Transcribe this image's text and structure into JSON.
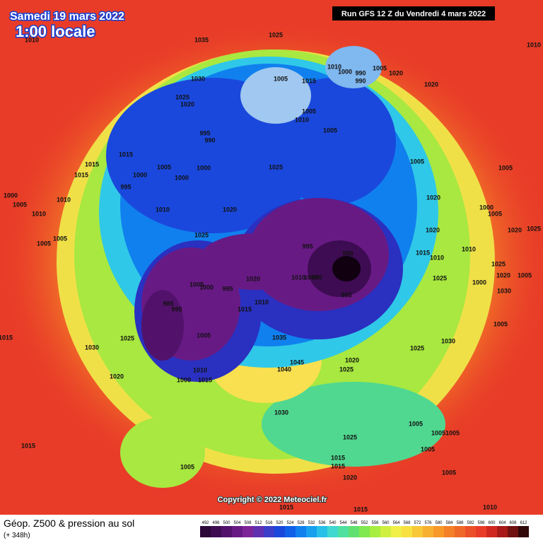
{
  "header": {
    "date": "Samedi 19 mars 2022",
    "time": "1:00 locale",
    "run": "Run GFS 12 Z du Vendredi 4 mars 2022"
  },
  "copyright": "Copyright © 2022 Meteociel.fr",
  "legend": {
    "title": "Géop. Z500 & pression au sol",
    "subtitle": "(+ 348h)",
    "ticks": [
      492,
      496,
      500,
      504,
      508,
      512,
      516,
      520,
      524,
      528,
      532,
      536,
      540,
      544,
      548,
      552,
      556,
      560,
      564,
      568,
      572,
      576,
      580,
      584,
      588,
      592,
      596,
      600,
      604,
      608,
      612
    ],
    "colors": [
      "#2b0838",
      "#3d0c52",
      "#52126b",
      "#681a84",
      "#7e2499",
      "#6030b0",
      "#3a3ec8",
      "#1a48dc",
      "#1060e8",
      "#1080ee",
      "#18a0ee",
      "#28c0e8",
      "#40d8d0",
      "#50e0a0",
      "#60e070",
      "#80e850",
      "#a8ee40",
      "#d0f040",
      "#f0f048",
      "#f8e040",
      "#f8c838",
      "#f8b030",
      "#f89828",
      "#f48028",
      "#f06828",
      "#ec5028",
      "#e83c28",
      "#d02820",
      "#a81818",
      "#701010",
      "#300808"
    ]
  },
  "pressure_labels": [
    "1035",
    "1025",
    "1010",
    "1030",
    "1025",
    "1020",
    "1005",
    "1015",
    "1010",
    "1000",
    "990",
    "990",
    "1005",
    "1020",
    "1020",
    "1010",
    "995",
    "990",
    "1005",
    "1010",
    "1005",
    "1015",
    "1005",
    "1000",
    "1000",
    "1000",
    "1015",
    "1015",
    "995",
    "1025",
    "1005",
    "1005",
    "1000",
    "1005",
    "1010",
    "1010",
    "1010",
    "1020",
    "1020",
    "1000",
    "1005",
    "1025",
    "1005",
    "1005",
    "1020",
    "1020",
    "1025",
    "995",
    "980",
    "1010",
    "1015",
    "1010",
    "1025",
    "1005",
    "1000",
    "995",
    "1020",
    "1010",
    "1005",
    "990",
    "985",
    "1025",
    "1000",
    "1020",
    "1005",
    "985",
    "995",
    "1015",
    "1010",
    "1030",
    "1005",
    "1025",
    "1005",
    "1035",
    "1030",
    "1015",
    "1030",
    "1025",
    "1020",
    "1010",
    "1000",
    "1015",
    "1045",
    "1040",
    "1025",
    "1020",
    "1030",
    "1005",
    "1005",
    "1005",
    "1025",
    "1005",
    "1015",
    "1015",
    "1015",
    "1005",
    "1005",
    "1020",
    "1015",
    "1015",
    "1010"
  ]
}
